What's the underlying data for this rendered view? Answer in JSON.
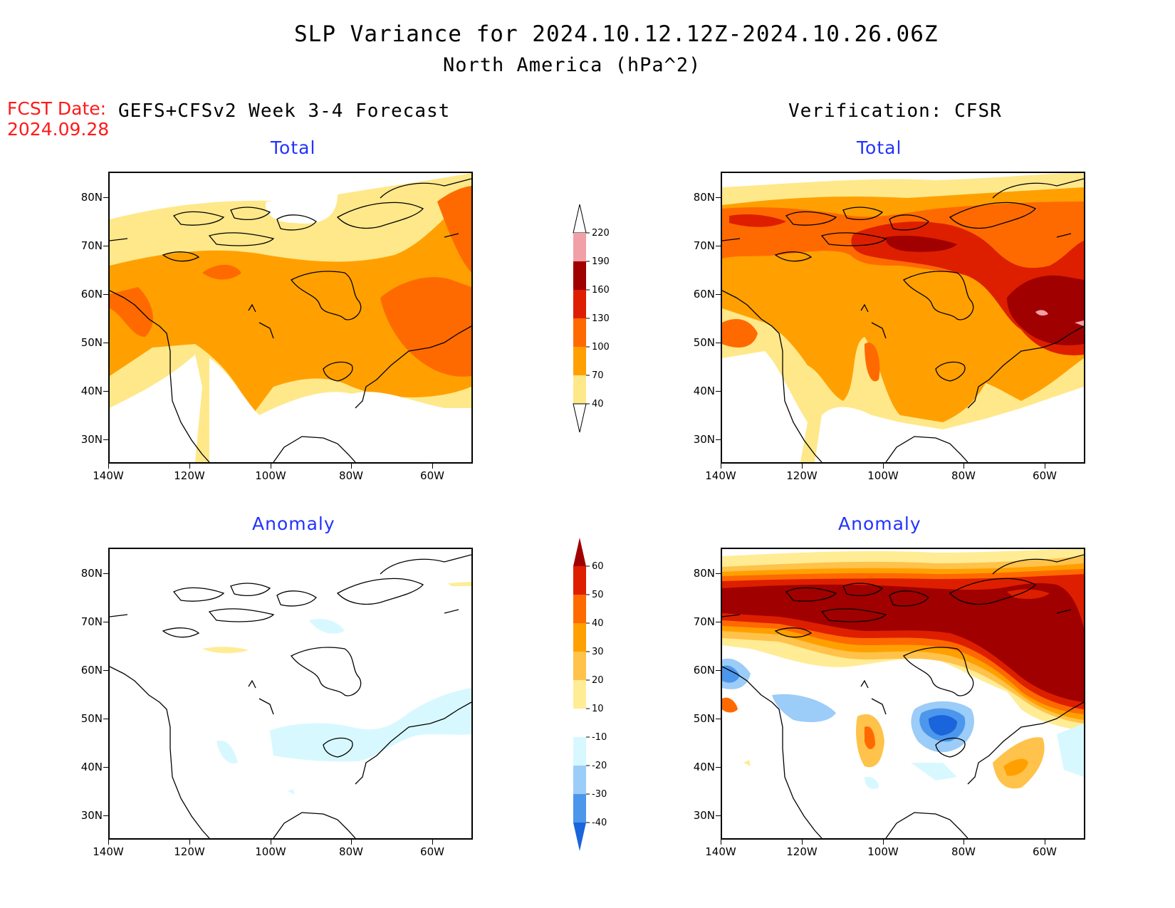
{
  "header": {
    "title": "SLP Variance for 2024.10.12.12Z-2024.10.26.06Z",
    "subtitle": "North America (hPa^2)",
    "fcst_date_label": "FCST Date:",
    "fcst_date_value": "2024.09.28",
    "left_header": "GEFS+CFSv2 Week 3-4 Forecast",
    "right_header": "Verification: CFSR"
  },
  "panels": {
    "top_left_title": "Total",
    "top_right_title": "Total",
    "bottom_left_title": "Anomaly",
    "bottom_right_title": "Anomaly"
  },
  "axes": {
    "lat_labels": [
      "80N",
      "70N",
      "60N",
      "50N",
      "40N",
      "30N"
    ],
    "lon_labels": [
      "140W",
      "120W",
      "100W",
      "80W",
      "60W"
    ]
  },
  "colorbars": {
    "total": {
      "labels": [
        "220",
        "190",
        "160",
        "130",
        "100",
        "70",
        "40"
      ],
      "colors": [
        "#ffffff",
        "#f2a0a8",
        "#a00000",
        "#dd1f00",
        "#ff6a00",
        "#ffa000",
        "#ffe88a"
      ]
    },
    "anomaly": {
      "labels": [
        "60",
        "50",
        "40",
        "30",
        "20",
        "10",
        "-10",
        "-20",
        "-30",
        "-40"
      ],
      "colors": [
        "#a00000",
        "#dd1f00",
        "#ff6a00",
        "#ffa000",
        "#ffc24a",
        "#ffec94",
        "#ffffff",
        "#d8f8ff",
        "#9cccf8",
        "#4c96ec",
        "#1a64dc"
      ]
    }
  }
}
